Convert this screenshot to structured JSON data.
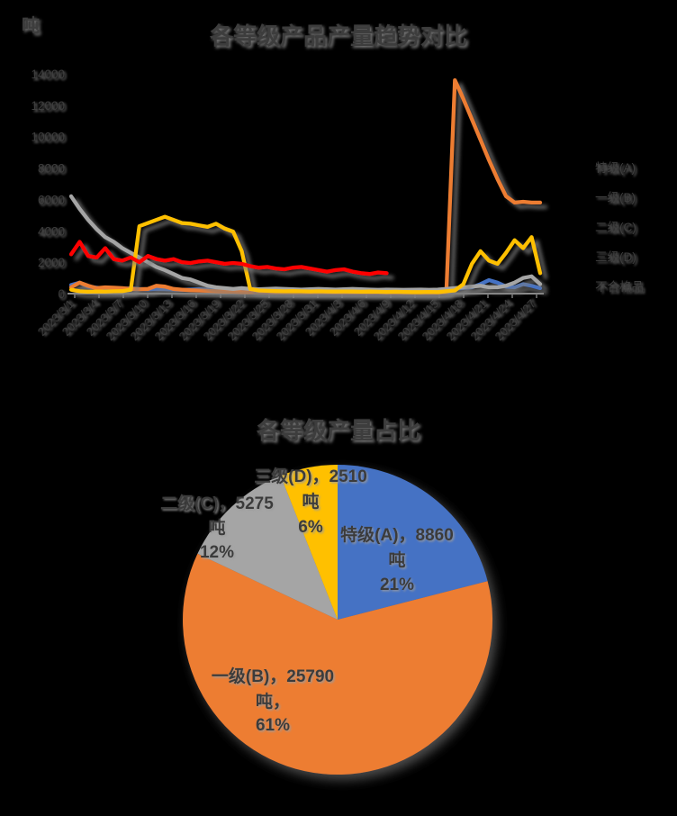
{
  "page": {
    "background": "#000000",
    "text_color": "#3d3d3d",
    "grid_color": "#d6d6d6"
  },
  "chart_data": [
    {
      "type": "line",
      "title": "各等级产品产量趋势对比",
      "unit": "吨",
      "ylim": [
        0,
        14000
      ],
      "y_ticks": [
        0,
        2000,
        4000,
        6000,
        8000,
        10000,
        12000,
        14000
      ],
      "grid": true,
      "legend_position": "right",
      "x_labels": [
        "2023/3/1",
        "2023/3/4",
        "2023/3/7",
        "2023/3/10",
        "2023/3/13",
        "2023/3/16",
        "2023/3/19",
        "2023/3/22",
        "2023/3/25",
        "2023/3/28",
        "2023/3/31",
        "2023/4/3",
        "2023/4/6",
        "2023/4/9",
        "2023/4/12",
        "2023/4/15",
        "2023/4/18",
        "2023/4/21",
        "2023/4/24",
        "2023/4/27"
      ],
      "series": [
        {
          "name": "特级(A)",
          "color": "#4472C4",
          "values": [
            550,
            700,
            450,
            380,
            320,
            300,
            310,
            330,
            290,
            270,
            300,
            280,
            260,
            240,
            260,
            280,
            250,
            230,
            250,
            240,
            220,
            200,
            210,
            190,
            200,
            210,
            190,
            180,
            190,
            200,
            180,
            170,
            180,
            190,
            170,
            160,
            170,
            160,
            150,
            140,
            150,
            140,
            130,
            140,
            250,
            300,
            350,
            400,
            600,
            860,
            700,
            450,
            400,
            600,
            500,
            350
          ]
        },
        {
          "name": "一级(B)",
          "color": "#ED7D31",
          "values": [
            400,
            700,
            500,
            350,
            400,
            380,
            350,
            300,
            280,
            300,
            500,
            450,
            300,
            250,
            220,
            200,
            180,
            150,
            130,
            120,
            100,
            90,
            80,
            80,
            70,
            80,
            70,
            60,
            70,
            80,
            70,
            60,
            60,
            70,
            60,
            50,
            60,
            50,
            50,
            40,
            50,
            40,
            40,
            50,
            100,
            13600,
            12400,
            11100,
            9800,
            8500,
            7300,
            6200,
            5800,
            5850,
            5800,
            5800
          ]
        },
        {
          "name": "二级(C)",
          "color": "#A5A5A5",
          "values": [
            6200,
            5400,
            4700,
            4100,
            3600,
            3300,
            2900,
            2600,
            2300,
            2000,
            1700,
            1500,
            1250,
            1000,
            900,
            700,
            500,
            400,
            350,
            300,
            350,
            300,
            280,
            300,
            320,
            300,
            280,
            260,
            280,
            300,
            280,
            260,
            280,
            300,
            280,
            260,
            240,
            260,
            250,
            240,
            250,
            260,
            240,
            260,
            300,
            350,
            400,
            450,
            500,
            400,
            400,
            500,
            700,
            1000,
            1100,
            600
          ]
        },
        {
          "name": "三级(D)",
          "color": "#FFC000",
          "values": [
            250,
            150,
            120,
            140,
            130,
            150,
            160,
            250,
            4300,
            4500,
            4700,
            4900,
            4700,
            4500,
            4450,
            4350,
            4250,
            4450,
            4150,
            3950,
            2700,
            300,
            200,
            180,
            160,
            150,
            160,
            150,
            140,
            150,
            140,
            130,
            140,
            130,
            120,
            130,
            120,
            110,
            120,
            110,
            100,
            100,
            110,
            100,
            150,
            200,
            600,
            1900,
            2700,
            2100,
            1900,
            2600,
            3400,
            2900,
            3600,
            1300
          ]
        },
        {
          "name": "不合格品",
          "color": "#FF0000",
          "values": [
            2500,
            3300,
            2400,
            2300,
            2900,
            2200,
            2100,
            2300,
            2000,
            2400,
            2200,
            2100,
            2200,
            2000,
            1950,
            2050,
            2100,
            2000,
            1900,
            1950,
            1900,
            1750,
            1650,
            1700,
            1600,
            1550,
            1650,
            1700,
            1600,
            1500,
            1400,
            1500,
            1550,
            1400,
            1300,
            1250,
            1350,
            1300,
            null,
            null,
            null,
            null,
            null,
            null,
            null,
            null,
            null,
            null,
            null,
            null,
            null,
            null,
            null,
            null,
            null,
            null
          ]
        }
      ]
    },
    {
      "type": "pie",
      "title": "各等级产量占比",
      "slices": [
        {
          "name": "特级(A)",
          "value": 8860,
          "unit": "吨",
          "percent": 21,
          "color": "#4472C4",
          "label_lines": [
            "特级(A)，8860",
            "吨",
            "21%"
          ]
        },
        {
          "name": "一级(B)",
          "value": 25790,
          "unit": "吨",
          "percent": 61,
          "color": "#ED7D31",
          "label_lines": [
            "一级(B)，25790",
            "吨，",
            "61%"
          ]
        },
        {
          "name": "二级(C)",
          "value": 5275,
          "unit": "吨",
          "percent": 12,
          "color": "#A5A5A5",
          "label_lines": [
            "二级(C)，5275",
            "吨",
            "12%"
          ]
        },
        {
          "name": "三级(D)",
          "value": 2510,
          "unit": "吨",
          "percent": 6,
          "color": "#FFC000",
          "label_lines": [
            "三级(D)，2510",
            "吨",
            "6%"
          ]
        }
      ]
    }
  ]
}
